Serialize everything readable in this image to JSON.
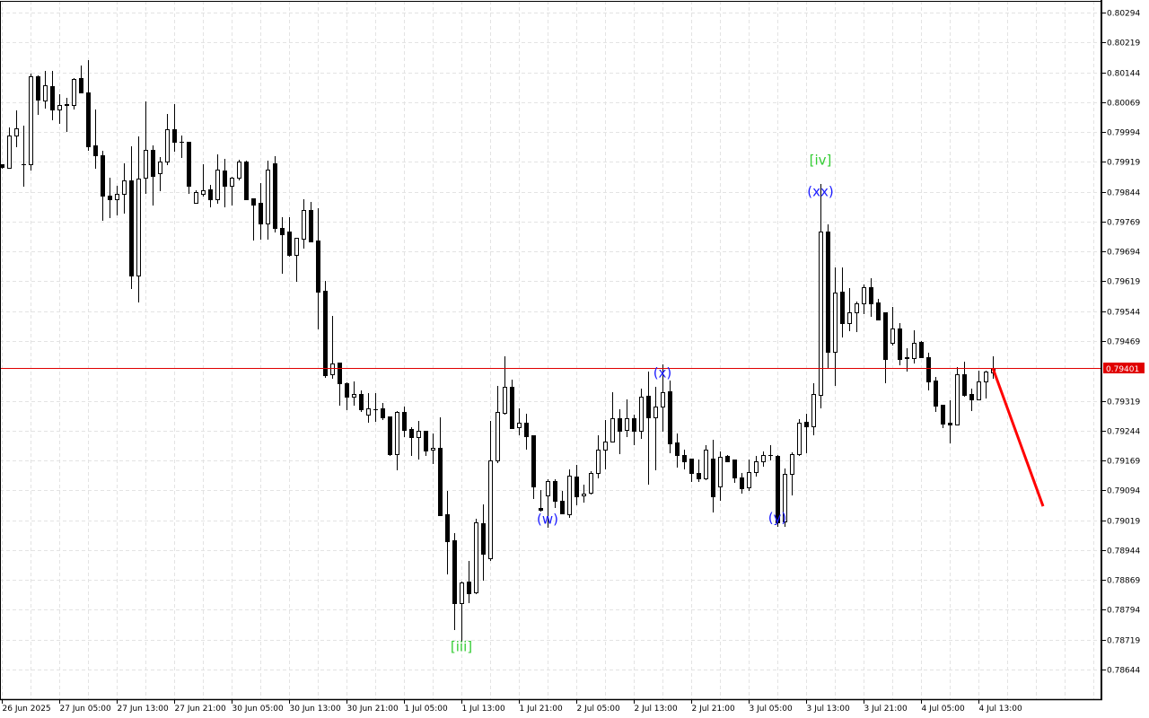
{
  "chart_data": {
    "type": "candlestick",
    "title": "",
    "xlabel": "",
    "ylabel": "",
    "ylim": [
      0.78609,
      0.80329
    ],
    "grid": true,
    "colors": {
      "background": "#ffffff",
      "grid": "#e3e3e3",
      "bull_body": "#ffffff",
      "bear_body": "#000000",
      "outline": "#000000",
      "current_price_line": "#e00000",
      "forecast_line": "#ff0000",
      "wave_label_minor": "#1a1aff",
      "wave_label_major": "#33cc33"
    },
    "y_ticks": [
      0.80294,
      0.80219,
      0.80144,
      0.80069,
      0.79994,
      0.79919,
      0.79844,
      0.79769,
      0.79694,
      0.79619,
      0.79544,
      0.79469,
      0.79319,
      0.79244,
      0.79169,
      0.79094,
      0.79019,
      0.78944,
      0.78869,
      0.78794,
      0.78719,
      0.78644
    ],
    "y_tick_labels": [
      "0.80294",
      "0.80219",
      "0.80144",
      "0.80069",
      "0.79994",
      "0.79919",
      "0.79844",
      "0.79769",
      "0.79694",
      "0.79619",
      "0.79544",
      "0.79469",
      "0.79319",
      "0.79244",
      "0.79169",
      "0.79094",
      "0.79019",
      "0.78944",
      "0.78869",
      "0.78794",
      "0.78719",
      "0.78644"
    ],
    "x_tick_labels": [
      "26 Jun 2025",
      "27 Jun 05:00",
      "27 Jun 13:00",
      "27 Jun 21:00",
      "30 Jun 05:00",
      "30 Jun 13:00",
      "30 Jun 21:00",
      "1 Jul 05:00",
      "1 Jul 13:00",
      "1 Jul 21:00",
      "2 Jul 05:00",
      "2 Jul 13:00",
      "2 Jul 21:00",
      "3 Jul 05:00",
      "3 Jul 13:00",
      "3 Jul 21:00",
      "4 Jul 05:00",
      "4 Jul 13:00"
    ],
    "bars_per_x_tick": 8,
    "current_price": 0.79401,
    "current_price_label": "0.79401",
    "ohlc_fields": [
      "open",
      "high",
      "low",
      "close"
    ],
    "candles": [
      [
        0.79912,
        0.79914,
        0.79905,
        0.79907
      ],
      [
        0.79905,
        0.80006,
        0.79903,
        0.79986
      ],
      [
        0.79986,
        0.80049,
        0.79959,
        0.80004
      ],
      [
        0.79912,
        0.8001,
        0.7986,
        0.79913
      ],
      [
        0.79914,
        0.80141,
        0.799,
        0.80134
      ],
      [
        0.80134,
        0.80136,
        0.8004,
        0.80076
      ],
      [
        0.80073,
        0.80148,
        0.80055,
        0.80112
      ],
      [
        0.8011,
        0.80148,
        0.80026,
        0.80051
      ],
      [
        0.80051,
        0.80089,
        0.80017,
        0.80062
      ],
      [
        0.80062,
        0.8008,
        0.79997,
        0.80063
      ],
      [
        0.80062,
        0.8013,
        0.80053,
        0.80127
      ],
      [
        0.8013,
        0.80161,
        0.80094,
        0.80094
      ],
      [
        0.80094,
        0.80175,
        0.7995,
        0.79959
      ],
      [
        0.79961,
        0.80051,
        0.79903,
        0.79936
      ],
      [
        0.79936,
        0.79947,
        0.79774,
        0.79835
      ],
      [
        0.79833,
        0.7988,
        0.79779,
        0.79824
      ],
      [
        0.79824,
        0.7986,
        0.79786,
        0.79839
      ],
      [
        0.79839,
        0.79916,
        0.79792,
        0.79873
      ],
      [
        0.79873,
        0.79959,
        0.79601,
        0.79633
      ],
      [
        0.79633,
        0.79983,
        0.79567,
        0.79878
      ],
      [
        0.7988,
        0.80071,
        0.79842,
        0.7995
      ],
      [
        0.7995,
        0.79961,
        0.79812,
        0.79884
      ],
      [
        0.79891,
        0.79932,
        0.79848,
        0.7992
      ],
      [
        0.7992,
        0.8004,
        0.79914,
        0.80001
      ],
      [
        0.80001,
        0.80064,
        0.79947,
        0.7997
      ],
      [
        0.7997,
        0.79986,
        0.79932,
        0.79969
      ],
      [
        0.7997,
        0.7997,
        0.79842,
        0.7986
      ],
      [
        0.79817,
        0.79848,
        0.79815,
        0.79844
      ],
      [
        0.79839,
        0.79914,
        0.79833,
        0.79848
      ],
      [
        0.79851,
        0.79862,
        0.79806,
        0.79824
      ],
      [
        0.79826,
        0.79938,
        0.79815,
        0.799
      ],
      [
        0.79898,
        0.79927,
        0.79808,
        0.7986
      ],
      [
        0.7986,
        0.79882,
        0.79812,
        0.7988
      ],
      [
        0.7988,
        0.79925,
        0.79875,
        0.7992
      ],
      [
        0.7992,
        0.79923,
        0.79824,
        0.79826
      ],
      [
        0.79828,
        0.79828,
        0.79723,
        0.79812
      ],
      [
        0.79817,
        0.79866,
        0.79725,
        0.79765
      ],
      [
        0.79765,
        0.79923,
        0.79725,
        0.799
      ],
      [
        0.79916,
        0.79934,
        0.79745,
        0.79752
      ],
      [
        0.79754,
        0.79781,
        0.79641,
        0.79738
      ],
      [
        0.79743,
        0.79779,
        0.79682,
        0.79686
      ],
      [
        0.79686,
        0.79729,
        0.79621,
        0.79729
      ],
      [
        0.79727,
        0.79824,
        0.79704,
        0.79799
      ],
      [
        0.79799,
        0.79819,
        0.7972,
        0.7972
      ],
      [
        0.79722,
        0.79803,
        0.795,
        0.79592
      ],
      [
        0.79596,
        0.79621,
        0.79378,
        0.79383
      ],
      [
        0.79385,
        0.79531,
        0.79376,
        0.79412
      ],
      [
        0.79414,
        0.79414,
        0.79308,
        0.79362
      ],
      [
        0.79362,
        0.79365,
        0.79297,
        0.79329
      ],
      [
        0.79329,
        0.79367,
        0.79308,
        0.79335
      ],
      [
        0.79335,
        0.79344,
        0.79293,
        0.79297
      ],
      [
        0.79284,
        0.79338,
        0.79266,
        0.79299
      ],
      [
        0.79297,
        0.79338,
        0.79268,
        0.79298
      ],
      [
        0.79299,
        0.79313,
        0.79272,
        0.79277
      ],
      [
        0.79279,
        0.79279,
        0.79182,
        0.79185
      ],
      [
        0.79185,
        0.79293,
        0.79147,
        0.7929
      ],
      [
        0.7929,
        0.79304,
        0.7923,
        0.79246
      ],
      [
        0.79248,
        0.79252,
        0.79182,
        0.79227
      ],
      [
        0.79227,
        0.79268,
        0.79173,
        0.79243
      ],
      [
        0.79243,
        0.79243,
        0.79182,
        0.79194
      ],
      [
        0.79196,
        0.79236,
        0.79162,
        0.792
      ],
      [
        0.792,
        0.79277,
        0.79032,
        0.79032
      ],
      [
        0.79034,
        0.79093,
        0.78886,
        0.78967
      ],
      [
        0.78969,
        0.78987,
        0.78746,
        0.78811
      ],
      [
        0.78811,
        0.78865,
        0.78717,
        0.78863
      ],
      [
        0.78865,
        0.78917,
        0.78813,
        0.78836
      ],
      [
        0.78838,
        0.79023,
        0.78836,
        0.79014
      ],
      [
        0.79011,
        0.79059,
        0.7887,
        0.78935
      ],
      [
        0.78924,
        0.79268,
        0.78919,
        0.79169
      ],
      [
        0.79169,
        0.79356,
        0.79164,
        0.7929
      ],
      [
        0.79288,
        0.7943,
        0.79286,
        0.79354
      ],
      [
        0.79354,
        0.79371,
        0.7925,
        0.7925
      ],
      [
        0.79252,
        0.79299,
        0.79234,
        0.79263
      ],
      [
        0.79263,
        0.79286,
        0.79198,
        0.7923
      ],
      [
        0.79232,
        0.79232,
        0.79075,
        0.79104
      ],
      [
        0.7905,
        0.79095,
        0.79043,
        0.79045
      ],
      [
        0.79081,
        0.79122,
        0.79002,
        0.79117
      ],
      [
        0.79117,
        0.79122,
        0.79052,
        0.79068
      ],
      [
        0.79068,
        0.79092,
        0.79036,
        0.79036
      ],
      [
        0.79034,
        0.79147,
        0.79027,
        0.79131
      ],
      [
        0.79128,
        0.79158,
        0.79059,
        0.79079
      ],
      [
        0.79081,
        0.79108,
        0.79065,
        0.79086
      ],
      [
        0.79088,
        0.79142,
        0.79086,
        0.79137
      ],
      [
        0.79137,
        0.79232,
        0.79126,
        0.79196
      ],
      [
        0.79196,
        0.7927,
        0.79149,
        0.79216
      ],
      [
        0.79216,
        0.7934,
        0.79216,
        0.79275
      ],
      [
        0.79275,
        0.79297,
        0.79187,
        0.79243
      ],
      [
        0.79246,
        0.79322,
        0.7923,
        0.79275
      ],
      [
        0.79275,
        0.79284,
        0.7921,
        0.79243
      ],
      [
        0.79243,
        0.79349,
        0.79225,
        0.79329
      ],
      [
        0.79331,
        0.79392,
        0.7911,
        0.79277
      ],
      [
        0.79277,
        0.79354,
        0.79147,
        0.79304
      ],
      [
        0.79304,
        0.7941,
        0.79243,
        0.7934
      ],
      [
        0.79342,
        0.79369,
        0.79189,
        0.79212
      ],
      [
        0.79214,
        0.79236,
        0.79153,
        0.79182
      ],
      [
        0.79182,
        0.79196,
        0.79149,
        0.79167
      ],
      [
        0.79173,
        0.79173,
        0.79117,
        0.79137
      ],
      [
        0.79137,
        0.79171,
        0.79117,
        0.79124
      ],
      [
        0.79124,
        0.79207,
        0.79122,
        0.79196
      ],
      [
        0.79173,
        0.79221,
        0.79041,
        0.79079
      ],
      [
        0.79104,
        0.79192,
        0.7907,
        0.79178
      ],
      [
        0.7918,
        0.79182,
        0.79167,
        0.79167
      ],
      [
        0.79171,
        0.79171,
        0.79115,
        0.79126
      ],
      [
        0.79126,
        0.79137,
        0.79088,
        0.79099
      ],
      [
        0.79101,
        0.79171,
        0.79095,
        0.7914
      ],
      [
        0.7914,
        0.7918,
        0.79131,
        0.79167
      ],
      [
        0.79167,
        0.79192,
        0.79155,
        0.79182
      ],
      [
        0.79182,
        0.79207,
        0.79171,
        0.79183
      ],
      [
        0.7918,
        0.79182,
        0.79005,
        0.79014
      ],
      [
        0.79016,
        0.79149,
        0.79005,
        0.79135
      ],
      [
        0.79135,
        0.79189,
        0.79083,
        0.79185
      ],
      [
        0.79185,
        0.79272,
        0.79182,
        0.79263
      ],
      [
        0.79266,
        0.79286,
        0.79189,
        0.79254
      ],
      [
        0.79254,
        0.79362,
        0.79234,
        0.79335
      ],
      [
        0.79333,
        0.79864,
        0.79302,
        0.79743
      ],
      [
        0.79745,
        0.79761,
        0.79401,
        0.79441
      ],
      [
        0.79441,
        0.79653,
        0.79358,
        0.7959
      ],
      [
        0.79594,
        0.79653,
        0.7948,
        0.79513
      ],
      [
        0.79513,
        0.79603,
        0.79495,
        0.79542
      ],
      [
        0.79542,
        0.79567,
        0.79493,
        0.79563
      ],
      [
        0.79563,
        0.79612,
        0.79538,
        0.79605
      ],
      [
        0.79605,
        0.79626,
        0.79531,
        0.79563
      ],
      [
        0.79565,
        0.79574,
        0.79522,
        0.79522
      ],
      [
        0.79542,
        0.79542,
        0.79365,
        0.79423
      ],
      [
        0.79464,
        0.79554,
        0.79461,
        0.795
      ],
      [
        0.795,
        0.79515,
        0.7941,
        0.79423
      ],
      [
        0.79428,
        0.79452,
        0.79394,
        0.79427
      ],
      [
        0.79426,
        0.79495,
        0.79414,
        0.79464
      ],
      [
        0.79466,
        0.7947,
        0.79428,
        0.79428
      ],
      [
        0.79428,
        0.79439,
        0.79347,
        0.79367
      ],
      [
        0.79369,
        0.79378,
        0.79293,
        0.79306
      ],
      [
        0.79308,
        0.79308,
        0.79252,
        0.79261
      ],
      [
        0.79263,
        0.7932,
        0.79214,
        0.79259
      ],
      [
        0.79259,
        0.79403,
        0.79259,
        0.79385
      ],
      [
        0.79385,
        0.79416,
        0.79331,
        0.79333
      ],
      [
        0.79335,
        0.79349,
        0.79295,
        0.79322
      ],
      [
        0.79322,
        0.79394,
        0.79322,
        0.79367
      ],
      [
        0.79367,
        0.79394,
        0.79326,
        0.79392
      ],
      [
        0.79389,
        0.7943,
        0.79376,
        0.79401
      ]
    ],
    "wave_labels": [
      {
        "text": "[iii]",
        "bar": 65,
        "price": 0.78701,
        "degree": "major"
      },
      {
        "text": "(w)",
        "bar": 77,
        "price": 0.79021,
        "degree": "minor"
      },
      {
        "text": "(x)",
        "bar": 93,
        "price": 0.79389,
        "degree": "minor"
      },
      {
        "text": "(y)",
        "bar": 109,
        "price": 0.79025,
        "degree": "minor"
      },
      {
        "text": "(xx)",
        "bar": 115,
        "price": 0.79844,
        "degree": "minor"
      },
      {
        "text": "[iv]",
        "bar": 115,
        "price": 0.79923,
        "degree": "major"
      }
    ],
    "forecast_line": {
      "from_bar": 139,
      "from_price": 0.79401,
      "bars_ahead": 7,
      "to_price": 0.79054
    }
  }
}
